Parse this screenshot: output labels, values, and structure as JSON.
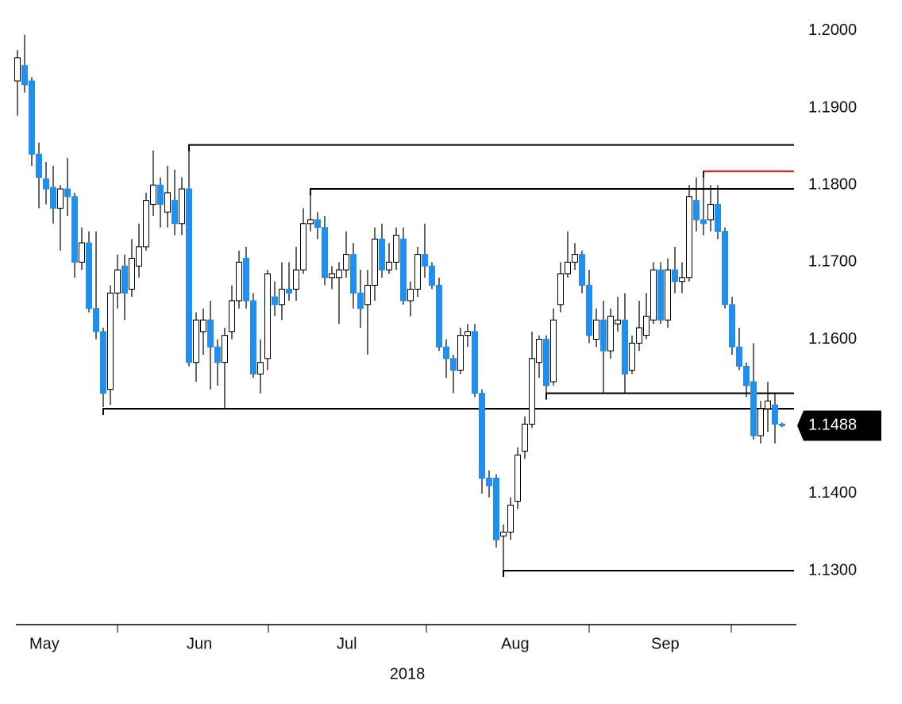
{
  "chart_data": {
    "type": "candlestick",
    "x_label": "2018",
    "categories": [
      null,
      "May",
      null,
      null,
      null,
      null,
      null,
      null,
      null,
      null,
      null,
      null,
      null,
      null,
      null,
      null,
      null,
      null,
      null,
      null,
      null,
      null,
      null,
      "Jun",
      null,
      null,
      null,
      null,
      null,
      null,
      null,
      null,
      null,
      null,
      null,
      null,
      null,
      null,
      null,
      null,
      null,
      null,
      null,
      null,
      "Jul",
      null,
      null,
      null,
      null,
      null,
      null,
      null,
      null,
      null,
      null,
      null,
      null,
      null,
      null,
      null,
      null,
      null,
      null,
      null,
      null,
      null,
      null,
      "Aug",
      null,
      null,
      null,
      null,
      null,
      null,
      null,
      null,
      null,
      null,
      null,
      null,
      null,
      null,
      null,
      null,
      null,
      null,
      null,
      null,
      "Sep",
      null,
      null,
      null,
      null,
      null,
      null,
      null,
      null,
      null,
      null,
      null,
      null,
      null,
      null,
      null,
      null,
      null,
      null,
      null
    ],
    "open": [
      1.1935,
      1.1955,
      1.1935,
      1.184,
      1.1808,
      1.1797,
      1.177,
      1.1795,
      1.1785,
      1.17,
      1.1725,
      1.164,
      1.161,
      1.1535,
      1.166,
      1.1695,
      1.1665,
      1.1695,
      1.172,
      1.1775,
      1.18,
      1.1765,
      1.178,
      1.175,
      1.1795,
      1.157,
      1.161,
      1.1625,
      1.159,
      1.157,
      1.161,
      1.165,
      1.1705,
      1.165,
      1.1555,
      1.1575,
      1.1655,
      1.1645,
      1.1665,
      1.1665,
      1.169,
      1.175,
      1.1755,
      1.1745,
      1.168,
      1.168,
      1.169,
      1.171,
      1.166,
      1.1645,
      1.167,
      1.173,
      1.169,
      1.17,
      1.173,
      1.165,
      1.1665,
      1.171,
      1.1695,
      1.167,
      1.159,
      1.1575,
      1.156,
      1.1605,
      1.161,
      1.153,
      1.142,
      1.142,
      1.1345,
      1.135,
      1.139,
      1.1455,
      1.149,
      1.157,
      1.16,
      1.1545,
      1.1645,
      1.1685,
      1.17,
      1.171,
      1.167,
      1.16,
      1.1625,
      1.1585,
      1.162,
      1.1625,
      1.156,
      1.1595,
      1.1605,
      1.1625,
      1.169,
      1.1625,
      1.169,
      1.1675,
      1.168,
      1.178,
      1.1755,
      1.1755,
      1.1775,
      1.174,
      1.1645,
      1.159,
      1.1565,
      1.1545,
      1.1475,
      1.151,
      1.1515,
      1.149
    ],
    "high": [
      1.1975,
      1.1995,
      1.194,
      1.1855,
      1.183,
      1.1825,
      1.18,
      1.1835,
      1.179,
      1.1745,
      1.174,
      1.174,
      1.1615,
      1.167,
      1.171,
      1.171,
      1.173,
      1.175,
      1.179,
      1.1845,
      1.181,
      1.1825,
      1.182,
      1.181,
      1.1852,
      1.1635,
      1.164,
      1.165,
      1.16,
      1.1615,
      1.167,
      1.1715,
      1.172,
      1.166,
      1.16,
      1.169,
      1.1675,
      1.17,
      1.17,
      1.172,
      1.177,
      1.1795,
      1.1765,
      1.176,
      1.1695,
      1.17,
      1.174,
      1.1725,
      1.169,
      1.169,
      1.1745,
      1.175,
      1.1725,
      1.1745,
      1.1745,
      1.1675,
      1.172,
      1.175,
      1.17,
      1.168,
      1.16,
      1.158,
      1.1615,
      1.162,
      1.162,
      1.1535,
      1.143,
      1.1425,
      1.136,
      1.1395,
      1.146,
      1.15,
      1.161,
      1.1605,
      1.1605,
      1.164,
      1.17,
      1.174,
      1.1725,
      1.1715,
      1.169,
      1.164,
      1.165,
      1.164,
      1.1655,
      1.166,
      1.1605,
      1.165,
      1.166,
      1.17,
      1.17,
      1.1705,
      1.172,
      1.17,
      1.18,
      1.181,
      1.1818,
      1.18,
      1.18,
      1.1745,
      1.1655,
      1.1615,
      1.157,
      1.1595,
      1.152,
      1.1545,
      1.153,
      1.1492
    ],
    "low": [
      1.189,
      1.192,
      1.1825,
      1.177,
      1.1775,
      1.175,
      1.1715,
      1.176,
      1.168,
      1.169,
      1.1635,
      1.16,
      1.1512,
      1.1515,
      1.164,
      1.1625,
      1.1655,
      1.168,
      1.1715,
      1.176,
      1.1745,
      1.1745,
      1.1735,
      1.1735,
      1.1565,
      1.1545,
      1.158,
      1.1535,
      1.154,
      1.151,
      1.16,
      1.164,
      1.164,
      1.155,
      1.153,
      1.156,
      1.163,
      1.1625,
      1.165,
      1.165,
      1.1685,
      1.174,
      1.173,
      1.167,
      1.1665,
      1.162,
      1.168,
      1.164,
      1.1615,
      1.158,
      1.165,
      1.168,
      1.1685,
      1.169,
      1.1645,
      1.163,
      1.1655,
      1.168,
      1.1665,
      1.1585,
      1.155,
      1.153,
      1.1555,
      1.159,
      1.1525,
      1.14,
      1.1395,
      1.133,
      1.13,
      1.134,
      1.138,
      1.1445,
      1.1485,
      1.155,
      1.153,
      1.154,
      1.1635,
      1.168,
      1.169,
      1.166,
      1.1595,
      1.159,
      1.153,
      1.1575,
      1.161,
      1.153,
      1.1555,
      1.1585,
      1.16,
      1.162,
      1.162,
      1.1615,
      1.166,
      1.166,
      1.1675,
      1.174,
      1.1735,
      1.174,
      1.173,
      1.164,
      1.158,
      1.156,
      1.1525,
      1.147,
      1.1465,
      1.148,
      1.1465,
      1.1486
    ],
    "close": [
      1.1965,
      1.193,
      1.184,
      1.181,
      1.1795,
      1.177,
      1.1795,
      1.1785,
      1.17,
      1.1725,
      1.164,
      1.161,
      1.153,
      1.166,
      1.169,
      1.166,
      1.1705,
      1.172,
      1.178,
      1.18,
      1.1775,
      1.179,
      1.175,
      1.1795,
      1.157,
      1.1625,
      1.1625,
      1.159,
      1.157,
      1.1605,
      1.165,
      1.17,
      1.165,
      1.1555,
      1.157,
      1.1685,
      1.1645,
      1.1665,
      1.166,
      1.169,
      1.175,
      1.1755,
      1.1745,
      1.168,
      1.1685,
      1.169,
      1.171,
      1.166,
      1.164,
      1.167,
      1.173,
      1.169,
      1.17,
      1.1735,
      1.165,
      1.1665,
      1.171,
      1.1695,
      1.167,
      1.159,
      1.1575,
      1.156,
      1.1605,
      1.161,
      1.153,
      1.142,
      1.141,
      1.134,
      1.135,
      1.1385,
      1.145,
      1.149,
      1.1575,
      1.16,
      1.154,
      1.1625,
      1.1685,
      1.17,
      1.171,
      1.167,
      1.1605,
      1.1625,
      1.1585,
      1.163,
      1.1625,
      1.1555,
      1.1595,
      1.1615,
      1.163,
      1.169,
      1.1625,
      1.169,
      1.1675,
      1.168,
      1.1785,
      1.1755,
      1.175,
      1.1775,
      1.174,
      1.1645,
      1.159,
      1.1565,
      1.154,
      1.1475,
      1.151,
      1.152,
      1.149,
      1.1488
    ],
    "up_color": "#ffffff",
    "down_color": "#1f8ff2",
    "ylim": [
      1.123,
      1.204
    ],
    "yticks": [
      {
        "value": 1.2,
        "label": "1.2000"
      },
      {
        "value": 1.19,
        "label": "1.1900"
      },
      {
        "value": 1.18,
        "label": "1.1800"
      },
      {
        "value": 1.17,
        "label": "1.1700"
      },
      {
        "value": 1.16,
        "label": "1.1600"
      },
      {
        "value": 1.14,
        "label": "1.1400"
      },
      {
        "value": 1.13,
        "label": "1.1300"
      }
    ],
    "last_price": {
      "value": 1.1488,
      "label": "1.1488"
    },
    "levels": [
      {
        "value": 1.1852,
        "start": 24,
        "color": "#000000"
      },
      {
        "value": 1.1818,
        "start": 96,
        "color": "#e00000"
      },
      {
        "value": 1.1795,
        "start": 41,
        "color": "#000000"
      },
      {
        "value": 1.153,
        "start": 74,
        "color": "#000000"
      },
      {
        "value": 1.151,
        "start": 12,
        "color": "#000000"
      },
      {
        "value": 1.13,
        "start": 68,
        "color": "#000000"
      }
    ]
  }
}
